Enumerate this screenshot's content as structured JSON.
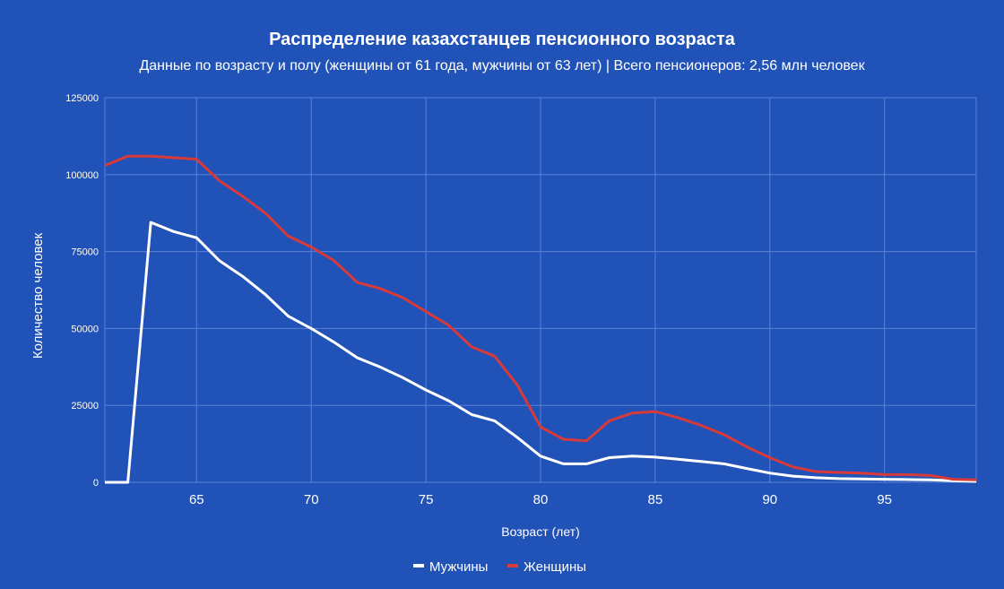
{
  "chart_data": {
    "type": "line",
    "title": "Распределение казахстанцев пенсионного возраста",
    "subtitle": "Данные по возрасту и полу (женщины от 61 года, мужчины от 63 лет) | Всего пенсионеров: 2,56 млн человек",
    "xlabel": "Возраст (лет)",
    "ylabel": "Количество человек",
    "xlim": [
      61,
      99
    ],
    "ylim": [
      0,
      125000
    ],
    "x_ticks": [
      "65",
      "70",
      "75",
      "80",
      "85",
      "90",
      "95"
    ],
    "y_ticks": [
      "0",
      "25000",
      "50000",
      "75000",
      "100000",
      "125000"
    ],
    "grid": true,
    "legend_position": "bottom",
    "colors": {
      "background": "#2052b8",
      "grid": "#5b82d6",
      "text": "#ffffff",
      "men": "#ffffff",
      "women": "#d83a3a"
    },
    "x": [
      61,
      62,
      63,
      64,
      65,
      66,
      67,
      68,
      69,
      70,
      71,
      72,
      73,
      74,
      75,
      76,
      77,
      78,
      79,
      80,
      81,
      82,
      83,
      84,
      85,
      86,
      87,
      88,
      89,
      90,
      91,
      92,
      93,
      94,
      95,
      96,
      97,
      98,
      99
    ],
    "series": [
      {
        "name": "Мужчины",
        "values": [
          0,
          0,
          84500,
          81500,
          79500,
          72000,
          67000,
          61000,
          54000,
          50000,
          45500,
          40500,
          37500,
          34000,
          30000,
          26500,
          22000,
          20000,
          14500,
          8500,
          6000,
          6000,
          8000,
          8500,
          8200,
          7500,
          6800,
          6000,
          4500,
          3000,
          2000,
          1500,
          1200,
          1100,
          1000,
          900,
          800,
          500,
          300
        ]
      },
      {
        "name": "Женщины",
        "values": [
          103000,
          106000,
          106000,
          105500,
          105000,
          98000,
          93000,
          87500,
          80000,
          76500,
          72000,
          65000,
          63000,
          60000,
          55500,
          51000,
          44000,
          41000,
          31500,
          18000,
          14000,
          13500,
          20000,
          22500,
          23000,
          21000,
          18500,
          15500,
          11500,
          8000,
          5000,
          3500,
          3200,
          3000,
          2500,
          2500,
          2200,
          1000,
          800
        ]
      }
    ]
  }
}
